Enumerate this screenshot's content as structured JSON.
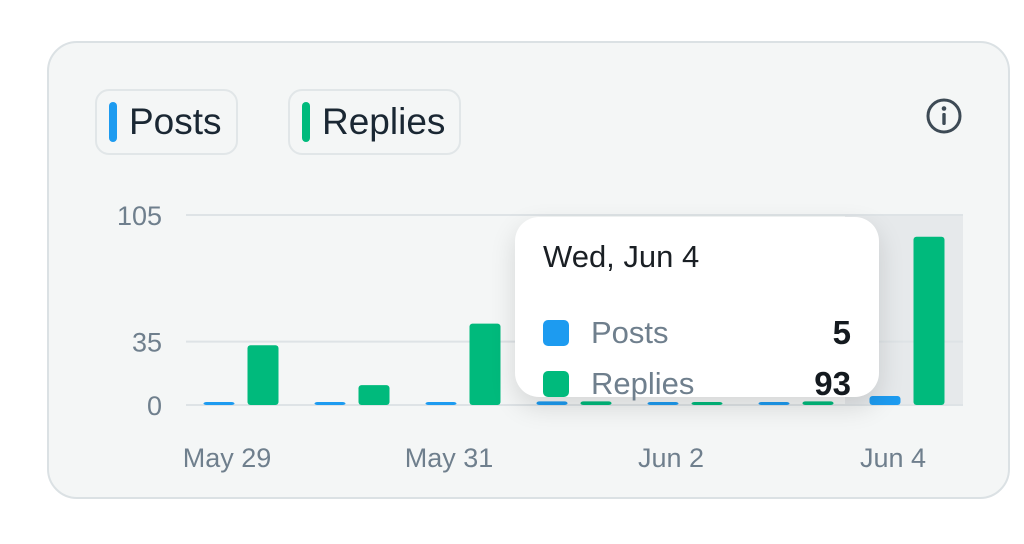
{
  "legend": {
    "posts_label": "Posts",
    "replies_label": "Replies"
  },
  "info_icon": "info-icon",
  "colors": {
    "posts": "#1d9bf0",
    "replies": "#00ba7c",
    "highlight": "#e6e9eb",
    "gridline": "#dee3e6",
    "axis_text": "#6f7f8d"
  },
  "chart_data": {
    "type": "bar",
    "categories": [
      "May 29",
      "May 30",
      "May 31",
      "Jun 1",
      "Jun 2",
      "Jun 3",
      "Jun 4"
    ],
    "x_tick_labels": [
      "May 29",
      "May 31",
      "Jun 2",
      "Jun 4"
    ],
    "y_ticks": [
      0,
      35,
      105
    ],
    "ylim": [
      0,
      105
    ],
    "grid": true,
    "highlighted_category": "Jun 4",
    "series": [
      {
        "name": "Posts",
        "values": [
          1,
          0,
          0,
          2,
          0,
          0,
          5
        ]
      },
      {
        "name": "Replies",
        "values": [
          33,
          11,
          45,
          2,
          1,
          2,
          93
        ]
      }
    ]
  },
  "tooltip": {
    "title": "Wed, Jun 4",
    "rows": [
      {
        "label": "Posts",
        "value": "5"
      },
      {
        "label": "Replies",
        "value": "93"
      }
    ]
  }
}
